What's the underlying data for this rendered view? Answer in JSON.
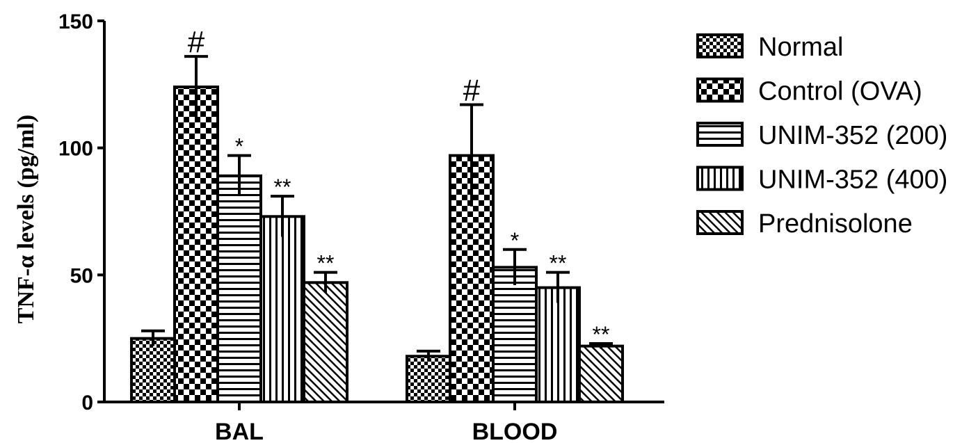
{
  "chart_data": {
    "type": "bar",
    "ylabel": "TNF-α levels (pg/ml)",
    "xlabel": "",
    "ylim": [
      0,
      150
    ],
    "yticks": [
      0,
      50,
      100,
      150
    ],
    "categories": [
      "BAL",
      "BLOOD"
    ],
    "legend_position": "right",
    "series": [
      {
        "name": "Normal",
        "pattern": "small-checker",
        "values": [
          25,
          18
        ],
        "errors": [
          3,
          2
        ],
        "annotations": [
          "",
          ""
        ]
      },
      {
        "name": "Control (OVA)",
        "pattern": "large-checker",
        "values": [
          124,
          97
        ],
        "errors": [
          12,
          20
        ],
        "annotations": [
          "#",
          "#"
        ]
      },
      {
        "name": "UNIM-352 (200)",
        "pattern": "horizontal-lines",
        "values": [
          89,
          53
        ],
        "errors": [
          8,
          7
        ],
        "annotations": [
          "*",
          "*"
        ]
      },
      {
        "name": "UNIM-352 (400)",
        "pattern": "vertical-lines",
        "values": [
          73,
          45
        ],
        "errors": [
          8,
          6
        ],
        "annotations": [
          "**",
          "**"
        ]
      },
      {
        "name": "Prednisolone",
        "pattern": "diagonal-lines",
        "values": [
          47,
          22
        ],
        "errors": [
          4,
          1
        ],
        "annotations": [
          "**",
          "**"
        ]
      }
    ]
  }
}
